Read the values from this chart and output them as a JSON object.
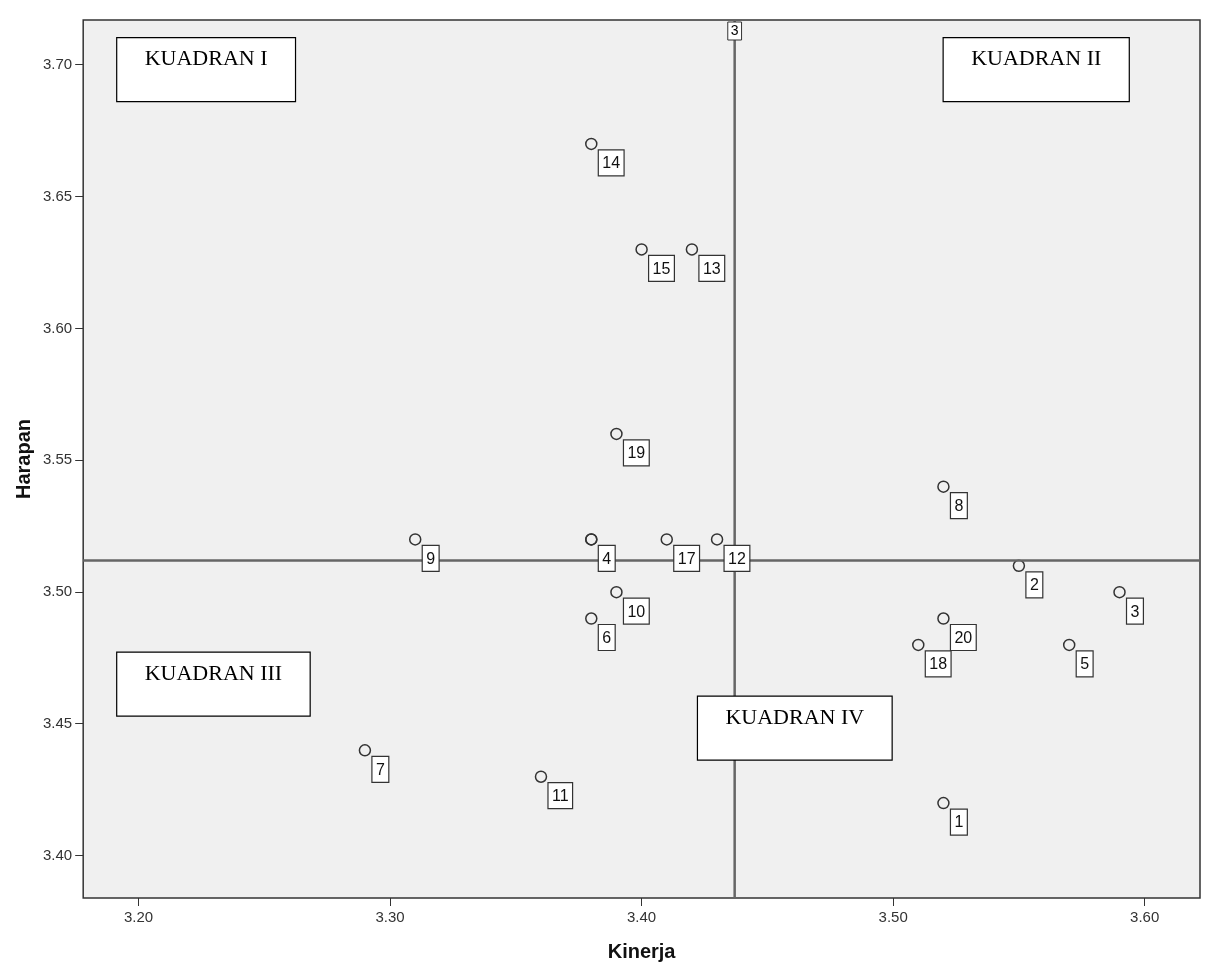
{
  "chart_data": {
    "type": "scatter",
    "xlabel": "Kinerja",
    "ylabel": "Harapan",
    "xlim": [
      3.178,
      3.622
    ],
    "xticks": [
      {
        "value": 3.2,
        "label": "3.20"
      },
      {
        "value": 3.3,
        "label": "3.30"
      },
      {
        "value": 3.4,
        "label": "3.40"
      },
      {
        "value": 3.5,
        "label": "3.50"
      },
      {
        "value": 3.6,
        "label": "3.60"
      }
    ],
    "ylim": [
      3.384,
      3.717
    ],
    "yticks": [
      {
        "value": 3.4,
        "label": "3.40"
      },
      {
        "value": 3.45,
        "label": "3.45"
      },
      {
        "value": 3.5,
        "label": "3.50"
      },
      {
        "value": 3.55,
        "label": "3.55"
      },
      {
        "value": 3.6,
        "label": "3.60"
      },
      {
        "value": 3.65,
        "label": "3.65"
      },
      {
        "value": 3.7,
        "label": "3.70"
      }
    ],
    "series": [
      {
        "color": "#333333",
        "x": [
          3.52,
          3.55,
          3.59,
          3.38,
          3.57,
          3.38,
          3.29,
          3.52,
          3.31,
          3.39,
          3.36,
          3.43,
          3.42,
          3.38,
          3.4,
          3.38,
          3.41,
          3.51,
          3.39,
          3.52
        ],
        "values": [
          3.42,
          3.51,
          3.5,
          3.52,
          3.48,
          3.49,
          3.44,
          3.54,
          3.52,
          3.5,
          3.43,
          3.52,
          3.63,
          3.67,
          3.63,
          3.52,
          3.52,
          3.48,
          3.56,
          3.49
        ]
      }
    ],
    "marker": "circle",
    "grid": false,
    "legend": false,
    "ref_lines": [
      {
        "axis": "x",
        "value": 3.437,
        "label": "3",
        "color": "#666666"
      },
      {
        "axis": "y",
        "value": 3.512,
        "label": null,
        "color": "#666666"
      }
    ],
    "annotations": [
      "KUADRAN I",
      "KUADRAN II",
      "KUADRAN III",
      "KUADRAN IV",
      {
        "text": "1",
        "x": 3.52,
        "y": 3.42
      },
      {
        "text": "2",
        "x": 3.55,
        "y": 3.51
      },
      {
        "text": "3",
        "x": 3.59,
        "y": 3.5
      },
      {
        "text": "4",
        "x": 3.38,
        "y": 3.52
      },
      {
        "text": "5",
        "x": 3.57,
        "y": 3.48
      },
      {
        "text": "6",
        "x": 3.38,
        "y": 3.49
      },
      {
        "text": "7",
        "x": 3.29,
        "y": 3.44
      },
      {
        "text": "8",
        "x": 3.52,
        "y": 3.54
      },
      {
        "text": "9",
        "x": 3.31,
        "y": 3.52
      },
      {
        "text": "10",
        "x": 3.39,
        "y": 3.5
      },
      {
        "text": "11",
        "x": 3.36,
        "y": 3.43
      },
      {
        "text": "12",
        "x": 3.43,
        "y": 3.52
      },
      {
        "text": "13",
        "x": 3.42,
        "y": 3.63
      },
      {
        "text": "14",
        "x": 3.38,
        "y": 3.67
      },
      {
        "text": "15",
        "x": 3.4,
        "y": 3.63
      },
      {
        "text": "17",
        "x": 3.41,
        "y": 3.52
      },
      {
        "text": "18",
        "x": 3.51,
        "y": 3.48
      },
      {
        "text": "19",
        "x": 3.39,
        "y": 3.56
      },
      {
        "text": "20",
        "x": 3.52,
        "y": 3.49
      }
    ]
  }
}
